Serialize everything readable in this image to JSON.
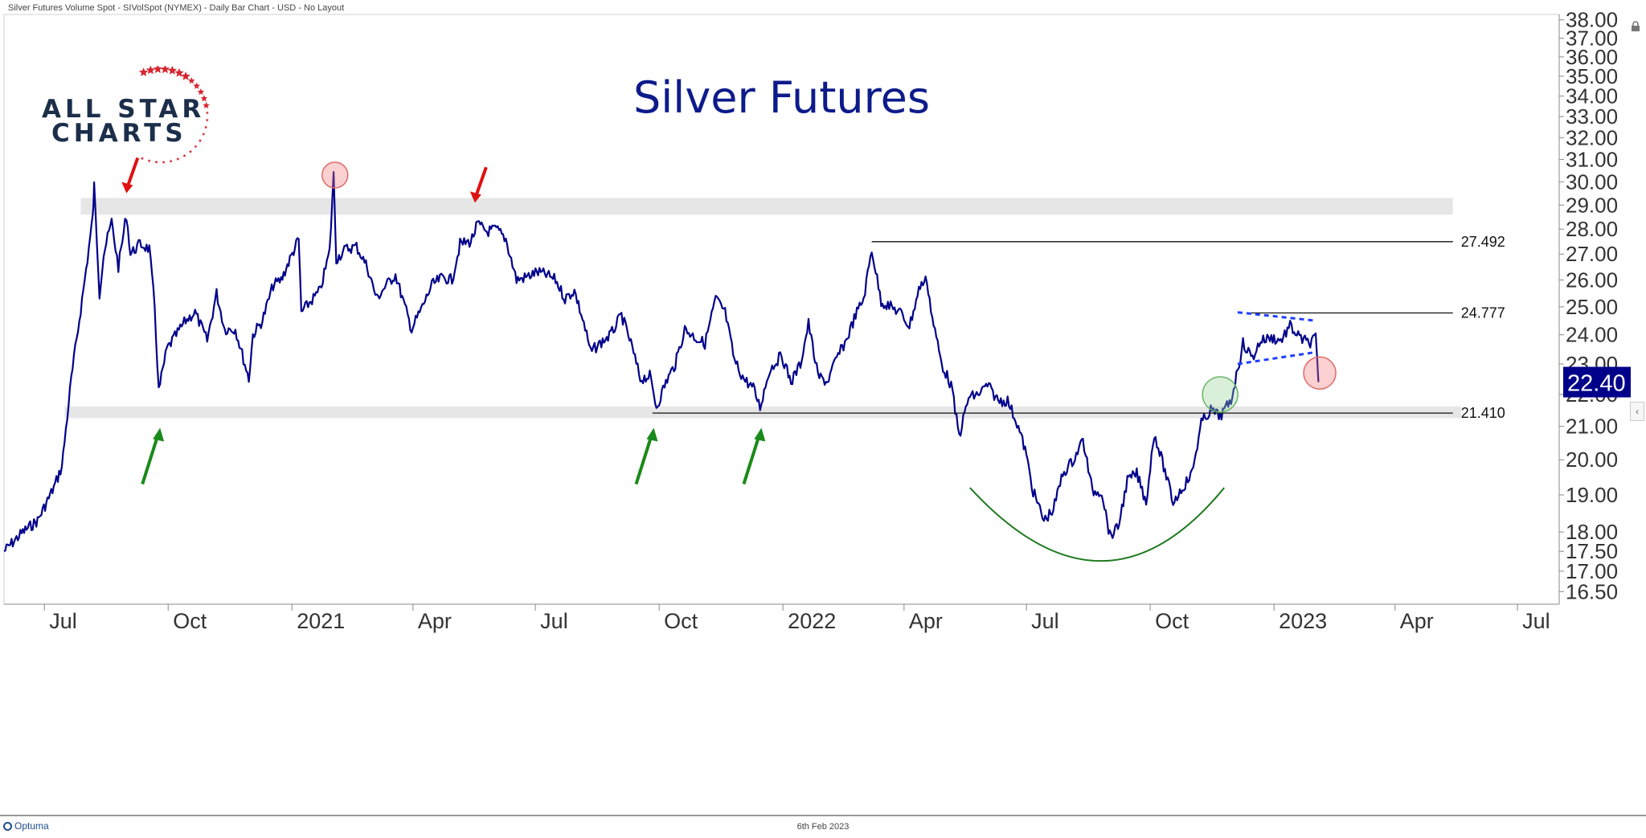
{
  "header": {
    "text": "Silver Futures Volume Spot - SIVolSpot (NYMEX) - Daily Bar Chart - USD - No Layout"
  },
  "footer": {
    "brand": "Optuma",
    "date": "6th Feb 2023"
  },
  "brand": {
    "line1": "ALL STAR",
    "line2": "CHARTS",
    "icon": "star-arc-icon",
    "color": "#1c2e4a",
    "accent": "#d62630"
  },
  "chart_data": {
    "type": "line",
    "title": "Silver Futures",
    "yscale": "log",
    "ylim": [
      16.2,
      38.3
    ],
    "y_ticks": [
      "38.00",
      "37.00",
      "36.00",
      "35.00",
      "34.00",
      "33.00",
      "32.00",
      "31.00",
      "30.00",
      "29.00",
      "28.00",
      "27.00",
      "26.00",
      "25.00",
      "24.00",
      "23.00",
      "22.00",
      "21.00",
      "20.00",
      "19.00",
      "18.00",
      "17.50",
      "17.00",
      "16.50"
    ],
    "x_ticks": [
      {
        "date": "2020-07-01",
        "label": "Jul"
      },
      {
        "date": "2020-10-01",
        "label": "Oct"
      },
      {
        "date": "2021-01-01",
        "label": "2021"
      },
      {
        "date": "2021-04-01",
        "label": "Apr"
      },
      {
        "date": "2021-07-01",
        "label": "Jul"
      },
      {
        "date": "2021-10-01",
        "label": "Oct"
      },
      {
        "date": "2022-01-01",
        "label": "2022"
      },
      {
        "date": "2022-04-01",
        "label": "Apr"
      },
      {
        "date": "2022-07-01",
        "label": "Jul"
      },
      {
        "date": "2022-10-01",
        "label": "Oct"
      },
      {
        "date": "2023-01-01",
        "label": "2023"
      },
      {
        "date": "2023-04-01",
        "label": "Apr"
      },
      {
        "date": "2023-07-01",
        "label": "Jul"
      }
    ],
    "xlim": [
      "2020-06-01",
      "2023-08-01"
    ],
    "series": [
      {
        "color": "#00008b",
        "points": [
          [
            "2020-06-01",
            17.5
          ],
          [
            "2020-06-15",
            18.0
          ],
          [
            "2020-06-26",
            18.3
          ],
          [
            "2020-07-08",
            19.2
          ],
          [
            "2020-07-14",
            19.8
          ],
          [
            "2020-07-21",
            22.5
          ],
          [
            "2020-07-24",
            23.5
          ],
          [
            "2020-07-31",
            26.0
          ],
          [
            "2020-08-06",
            28.5
          ],
          [
            "2020-08-07",
            29.8
          ],
          [
            "2020-08-11",
            25.5
          ],
          [
            "2020-08-14",
            27.0
          ],
          [
            "2020-08-20",
            28.3
          ],
          [
            "2020-08-25",
            26.5
          ],
          [
            "2020-08-31",
            28.6
          ],
          [
            "2020-09-03",
            27.0
          ],
          [
            "2020-09-10",
            27.4
          ],
          [
            "2020-09-17",
            27.2
          ],
          [
            "2020-09-21",
            25.0
          ],
          [
            "2020-09-24",
            22.1
          ],
          [
            "2020-09-30",
            23.5
          ],
          [
            "2020-10-07",
            24.0
          ],
          [
            "2020-10-14",
            24.5
          ],
          [
            "2020-10-21",
            24.8
          ],
          [
            "2020-10-30",
            23.8
          ],
          [
            "2020-11-06",
            25.5
          ],
          [
            "2020-11-12",
            24.2
          ],
          [
            "2020-11-20",
            24.2
          ],
          [
            "2020-11-30",
            22.5
          ],
          [
            "2020-12-03",
            24.0
          ],
          [
            "2020-12-10",
            24.5
          ],
          [
            "2020-12-18",
            25.8
          ],
          [
            "2020-12-24",
            26.0
          ],
          [
            "2021-01-06",
            27.6
          ],
          [
            "2021-01-08",
            24.8
          ],
          [
            "2021-01-15",
            25.2
          ],
          [
            "2021-01-22",
            25.6
          ],
          [
            "2021-01-29",
            27.1
          ],
          [
            "2021-02-01",
            30.3
          ],
          [
            "2021-02-03",
            26.8
          ],
          [
            "2021-02-10",
            27.2
          ],
          [
            "2021-02-18",
            27.3
          ],
          [
            "2021-02-26",
            26.5
          ],
          [
            "2021-03-05",
            25.3
          ],
          [
            "2021-03-12",
            25.8
          ],
          [
            "2021-03-19",
            26.2
          ],
          [
            "2021-03-26",
            25.0
          ],
          [
            "2021-03-31",
            24.2
          ],
          [
            "2021-04-08",
            25.0
          ],
          [
            "2021-04-15",
            25.8
          ],
          [
            "2021-04-23",
            26.1
          ],
          [
            "2021-04-30",
            26.0
          ],
          [
            "2021-05-06",
            27.4
          ],
          [
            "2021-05-14",
            27.5
          ],
          [
            "2021-05-19",
            28.2
          ],
          [
            "2021-05-26",
            27.9
          ],
          [
            "2021-06-02",
            28.0
          ],
          [
            "2021-06-09",
            27.6
          ],
          [
            "2021-06-17",
            26.0
          ],
          [
            "2021-06-24",
            26.1
          ],
          [
            "2021-07-02",
            26.3
          ],
          [
            "2021-07-09",
            26.2
          ],
          [
            "2021-07-16",
            26.0
          ],
          [
            "2021-07-23",
            25.3
          ],
          [
            "2021-07-30",
            25.6
          ],
          [
            "2021-08-06",
            24.4
          ],
          [
            "2021-08-11",
            23.4
          ],
          [
            "2021-08-18",
            23.7
          ],
          [
            "2021-08-26",
            24.0
          ],
          [
            "2021-09-03",
            24.7
          ],
          [
            "2021-09-10",
            23.7
          ],
          [
            "2021-09-17",
            22.5
          ],
          [
            "2021-09-24",
            22.6
          ],
          [
            "2021-09-29",
            21.6
          ],
          [
            "2021-10-06",
            22.4
          ],
          [
            "2021-10-13",
            23.0
          ],
          [
            "2021-10-20",
            24.2
          ],
          [
            "2021-10-28",
            23.9
          ],
          [
            "2021-11-04",
            23.7
          ],
          [
            "2021-11-12",
            25.3
          ],
          [
            "2021-11-19",
            24.8
          ],
          [
            "2021-11-26",
            23.1
          ],
          [
            "2021-12-03",
            22.5
          ],
          [
            "2021-12-10",
            22.2
          ],
          [
            "2021-12-15",
            21.6
          ],
          [
            "2021-12-22",
            22.8
          ],
          [
            "2021-12-31",
            23.3
          ],
          [
            "2022-01-07",
            22.4
          ],
          [
            "2022-01-14",
            23.0
          ],
          [
            "2022-01-20",
            24.4
          ],
          [
            "2022-01-27",
            22.6
          ],
          [
            "2022-02-03",
            22.4
          ],
          [
            "2022-02-10",
            23.2
          ],
          [
            "2022-02-17",
            23.8
          ],
          [
            "2022-02-24",
            24.7
          ],
          [
            "2022-03-02",
            25.3
          ],
          [
            "2022-03-08",
            27.2
          ],
          [
            "2022-03-15",
            25.2
          ],
          [
            "2022-03-22",
            25.0
          ],
          [
            "2022-03-29",
            24.8
          ],
          [
            "2022-04-05",
            24.3
          ],
          [
            "2022-04-13",
            25.8
          ],
          [
            "2022-04-18",
            26.0
          ],
          [
            "2022-04-22",
            24.6
          ],
          [
            "2022-04-29",
            23.0
          ],
          [
            "2022-05-06",
            22.3
          ],
          [
            "2022-05-12",
            20.7
          ],
          [
            "2022-05-19",
            21.9
          ],
          [
            "2022-05-26",
            22.0
          ],
          [
            "2022-06-02",
            22.3
          ],
          [
            "2022-06-10",
            21.8
          ],
          [
            "2022-06-17",
            21.8
          ],
          [
            "2022-06-24",
            21.1
          ],
          [
            "2022-06-30",
            20.3
          ],
          [
            "2022-07-06",
            19.1
          ],
          [
            "2022-07-14",
            18.3
          ],
          [
            "2022-07-21",
            18.6
          ],
          [
            "2022-07-28",
            19.6
          ],
          [
            "2022-08-05",
            20.0
          ],
          [
            "2022-08-12",
            20.6
          ],
          [
            "2022-08-19",
            19.1
          ],
          [
            "2022-08-26",
            19.1
          ],
          [
            "2022-09-01",
            17.9
          ],
          [
            "2022-09-07",
            18.1
          ],
          [
            "2022-09-14",
            19.4
          ],
          [
            "2022-09-21",
            19.6
          ],
          [
            "2022-09-28",
            18.8
          ],
          [
            "2022-10-04",
            20.8
          ],
          [
            "2022-10-11",
            19.8
          ],
          [
            "2022-10-18",
            18.8
          ],
          [
            "2022-10-25",
            19.2
          ],
          [
            "2022-11-01",
            19.6
          ],
          [
            "2022-11-08",
            21.1
          ],
          [
            "2022-11-15",
            21.5
          ],
          [
            "2022-11-22",
            21.3
          ],
          [
            "2022-11-30",
            21.8
          ],
          [
            "2022-12-05",
            22.8
          ],
          [
            "2022-12-09",
            23.7
          ],
          [
            "2022-12-16",
            23.2
          ],
          [
            "2022-12-22",
            23.8
          ],
          [
            "2022-12-30",
            23.9
          ],
          [
            "2023-01-06",
            23.8
          ],
          [
            "2023-01-13",
            24.3
          ],
          [
            "2023-01-20",
            23.9
          ],
          [
            "2023-01-27",
            23.7
          ],
          [
            "2023-02-01",
            23.9
          ],
          [
            "2023-02-03",
            22.4
          ]
        ]
      }
    ],
    "current_price": {
      "value": 22.4,
      "label": "22.40",
      "color": "#00008b"
    },
    "levels": [
      {
        "value": 27.492,
        "label": "27.492",
        "from": "2022-03-08",
        "to": "2023-05-14"
      },
      {
        "value": 24.777,
        "label": "24.777",
        "from": "2022-12-12",
        "to": "2023-05-14"
      },
      {
        "value": 21.41,
        "label": "21.410",
        "from": "2021-09-26",
        "to": "2023-05-14"
      }
    ],
    "zones": [
      {
        "from": "2020-07-28",
        "to": "2023-05-14",
        "low": 28.6,
        "high": 29.3
      },
      {
        "from": "2020-07-16",
        "to": "2023-05-20",
        "low": 21.25,
        "high": 21.62
      }
    ],
    "channel": {
      "color": "#1f3fff",
      "upper": [
        [
          "2022-12-05",
          24.8
        ],
        [
          "2023-02-01",
          24.5
        ]
      ],
      "lower": [
        [
          "2022-12-05",
          23.0
        ],
        [
          "2023-02-01",
          23.4
        ]
      ]
    },
    "markers": [
      {
        "kind": "red-arrow",
        "date": "2020-08-31",
        "value": 29.3
      },
      {
        "kind": "red-arrow",
        "date": "2021-05-17",
        "value": 28.9
      },
      {
        "kind": "green-arrow",
        "date": "2020-09-25",
        "value": 21.2
      },
      {
        "kind": "green-arrow",
        "date": "2021-09-27",
        "value": 21.2
      },
      {
        "kind": "green-arrow",
        "date": "2021-12-16",
        "value": 21.2
      },
      {
        "kind": "red-circle",
        "date": "2021-02-02",
        "value": 30.3
      },
      {
        "kind": "red-circle",
        "date": "2023-02-04",
        "value": 22.7
      },
      {
        "kind": "green-circle",
        "date": "2022-11-22",
        "value": 22.0
      }
    ],
    "cup": {
      "from": "2022-05-20",
      "to": "2022-11-25",
      "bottom_date": "2022-08-28",
      "top_value": 19.2,
      "bottom_value": 17.3,
      "color": "#1f7a1f"
    }
  }
}
